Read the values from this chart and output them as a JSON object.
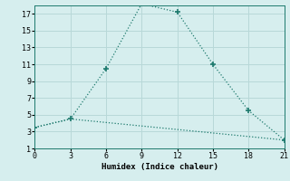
{
  "xlabel": "Humidex (Indice chaleur)",
  "background_color": "#d6eeee",
  "grid_color": "#b8d8d8",
  "line_color": "#1e7a6e",
  "xlim": [
    0,
    21
  ],
  "ylim": [
    1,
    18
  ],
  "xticks": [
    0,
    3,
    6,
    9,
    12,
    15,
    18,
    21
  ],
  "yticks": [
    1,
    3,
    5,
    7,
    9,
    11,
    13,
    15,
    17
  ],
  "series1_x": [
    0,
    3,
    6,
    9,
    12,
    15,
    18,
    21
  ],
  "series1_y": [
    3.5,
    4.5,
    10.5,
    18.2,
    17.2,
    11.0,
    5.5,
    2.0
  ],
  "series2_x": [
    0,
    3,
    21
  ],
  "series2_y": [
    3.5,
    4.5,
    2.0
  ]
}
